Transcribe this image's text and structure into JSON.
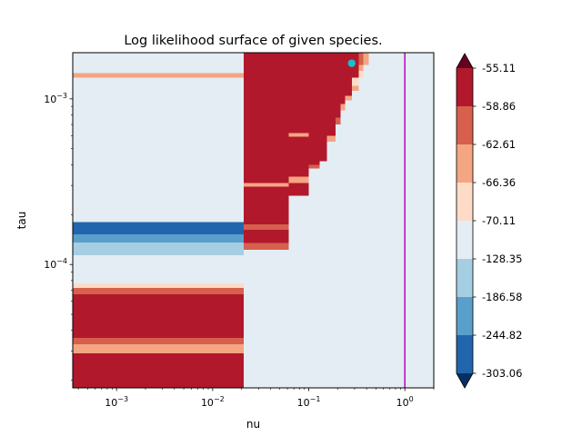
{
  "chart_data": {
    "type": "heatmap",
    "title": "Log likelihood surface of given species.",
    "xlabel": "nu",
    "ylabel": "tau",
    "xscale": "log",
    "yscale": "log",
    "xlim": [
      0.00035,
      2.0
    ],
    "ylim": [
      1.8e-05,
      0.0019
    ],
    "xticks": [
      {
        "value": 0.001,
        "base": "10",
        "exp": "−3"
      },
      {
        "value": 0.01,
        "base": "10",
        "exp": "−2"
      },
      {
        "value": 0.1,
        "base": "10",
        "exp": "−1"
      },
      {
        "value": 1,
        "base": "10",
        "exp": "0"
      }
    ],
    "yticks": [
      {
        "value": 0.001,
        "base": "10",
        "exp": "−3"
      },
      {
        "value": 0.0001,
        "base": "10",
        "exp": "−4"
      }
    ],
    "colorbar": {
      "levels": [
        "-55.11",
        "-58.86",
        "-62.61",
        "-66.36",
        "-70.11",
        "-128.35",
        "-186.58",
        "-244.82",
        "-303.06"
      ],
      "band_colors": [
        "#b2182b",
        "#d6604d",
        "#f4a582",
        "#fddbc7",
        "#e3edf3",
        "#a6cee3",
        "#5a9fcc",
        "#2166ac"
      ],
      "over_color": "#67001f",
      "under_color": "#053061",
      "extend": "both"
    },
    "background_color": "#e3edf3",
    "regions": [
      {
        "x": [
          0.00035,
          0.021
        ],
        "y": [
          1.8e-05,
          2.9e-05
        ],
        "level_index": 0
      },
      {
        "x": [
          0.00035,
          0.021
        ],
        "y": [
          2.9e-05,
          3.3e-05
        ],
        "level_index": 2
      },
      {
        "x": [
          0.00035,
          0.021
        ],
        "y": [
          3.3e-05,
          3.6e-05
        ],
        "level_index": 1
      },
      {
        "x": [
          0.00035,
          0.021
        ],
        "y": [
          3.6e-05,
          6.6e-05
        ],
        "level_index": 0
      },
      {
        "x": [
          0.00035,
          0.021
        ],
        "y": [
          6.6e-05,
          7.2e-05
        ],
        "level_index": 1
      },
      {
        "x": [
          0.00035,
          0.021
        ],
        "y": [
          7.2e-05,
          7.7e-05
        ],
        "level_index": 3
      },
      {
        "x": [
          0.00035,
          0.021
        ],
        "y": [
          0.000114,
          0.000136
        ],
        "level_index": 5
      },
      {
        "x": [
          0.00035,
          0.021
        ],
        "y": [
          0.000136,
          0.000152
        ],
        "level_index": 6
      },
      {
        "x": [
          0.00035,
          0.021
        ],
        "y": [
          0.000152,
          0.00018
        ],
        "level_index": 7
      },
      {
        "x": [
          0.00035,
          0.021
        ],
        "y": [
          0.00134,
          0.00143
        ],
        "level_index": 2
      },
      {
        "x": [
          0.021,
          0.062
        ],
        "y": [
          0.000123,
          0.000135
        ],
        "level_index": 1
      },
      {
        "x": [
          0.021,
          0.062
        ],
        "y": [
          0.000135,
          0.000162
        ],
        "level_index": 0
      },
      {
        "x": [
          0.021,
          0.062
        ],
        "y": [
          0.000162,
          0.000175
        ],
        "level_index": 1
      },
      {
        "x": [
          0.021,
          0.062
        ],
        "y": [
          0.000175,
          0.000295
        ],
        "level_index": 0
      },
      {
        "x": [
          0.021,
          0.062
        ],
        "y": [
          0.000295,
          0.00031
        ],
        "level_index": 2
      },
      {
        "x": [
          0.021,
          0.062
        ],
        "y": [
          0.00031,
          0.0019
        ],
        "level_index": 0
      },
      {
        "x": [
          0.062,
          0.1
        ],
        "y": [
          0.00026,
          0.00031
        ],
        "level_index": 0
      },
      {
        "x": [
          0.062,
          0.1
        ],
        "y": [
          0.00031,
          0.00034
        ],
        "level_index": 2
      },
      {
        "x": [
          0.062,
          0.1
        ],
        "y": [
          0.00034,
          0.00059
        ],
        "level_index": 0
      },
      {
        "x": [
          0.062,
          0.1
        ],
        "y": [
          0.00059,
          0.00062
        ],
        "level_index": 2
      },
      {
        "x": [
          0.062,
          0.1
        ],
        "y": [
          0.00062,
          0.0019
        ],
        "level_index": 0
      },
      {
        "x": [
          0.1,
          0.13
        ],
        "y": [
          0.00038,
          0.0004
        ],
        "level_index": 1
      },
      {
        "x": [
          0.1,
          0.13
        ],
        "y": [
          0.0004,
          0.0019
        ],
        "level_index": 0
      },
      {
        "x": [
          0.13,
          0.155
        ],
        "y": [
          0.00042,
          0.00055
        ],
        "level_index": 0
      },
      {
        "x": [
          0.13,
          0.155
        ],
        "y": [
          0.00055,
          0.0019
        ],
        "level_index": 0
      },
      {
        "x": [
          0.155,
          0.19
        ],
        "y": [
          0.00055,
          0.0006
        ],
        "level_index": 2
      },
      {
        "x": [
          0.155,
          0.19
        ],
        "y": [
          0.0006,
          0.0019
        ],
        "level_index": 0
      },
      {
        "x": [
          0.19,
          0.215
        ],
        "y": [
          0.0007,
          0.00077
        ],
        "level_index": 1
      },
      {
        "x": [
          0.19,
          0.215
        ],
        "y": [
          0.00077,
          0.0019
        ],
        "level_index": 0
      },
      {
        "x": [
          0.215,
          0.24
        ],
        "y": [
          0.00085,
          0.00093
        ],
        "level_index": 2
      },
      {
        "x": [
          0.215,
          0.24
        ],
        "y": [
          0.00093,
          0.0019
        ],
        "level_index": 0
      },
      {
        "x": [
          0.24,
          0.28
        ],
        "y": [
          0.00098,
          0.00104
        ],
        "level_index": 2
      },
      {
        "x": [
          0.24,
          0.28
        ],
        "y": [
          0.00104,
          0.0019
        ],
        "level_index": 0
      },
      {
        "x": [
          0.28,
          0.33
        ],
        "y": [
          0.00112,
          0.0012
        ],
        "level_index": 2
      },
      {
        "x": [
          0.28,
          0.33
        ],
        "y": [
          0.0012,
          0.00134
        ],
        "level_index": 3
      },
      {
        "x": [
          0.28,
          0.33
        ],
        "y": [
          0.00134,
          0.0019
        ],
        "level_index": 0
      },
      {
        "x": [
          0.33,
          0.37
        ],
        "y": [
          0.00134,
          0.00148
        ],
        "level_index": 3
      },
      {
        "x": [
          0.33,
          0.37
        ],
        "y": [
          0.00148,
          0.0016
        ],
        "level_index": 2
      },
      {
        "x": [
          0.33,
          0.37
        ],
        "y": [
          0.0016,
          0.0019
        ],
        "level_index": 1
      },
      {
        "x": [
          0.37,
          0.42
        ],
        "y": [
          0.0016,
          0.0019
        ],
        "level_index": 2
      }
    ],
    "point": {
      "nu": 0.28,
      "tau": 0.00164,
      "color": "#17becf"
    },
    "vline": {
      "nu": 1.0,
      "color": "#bf00bf"
    }
  }
}
